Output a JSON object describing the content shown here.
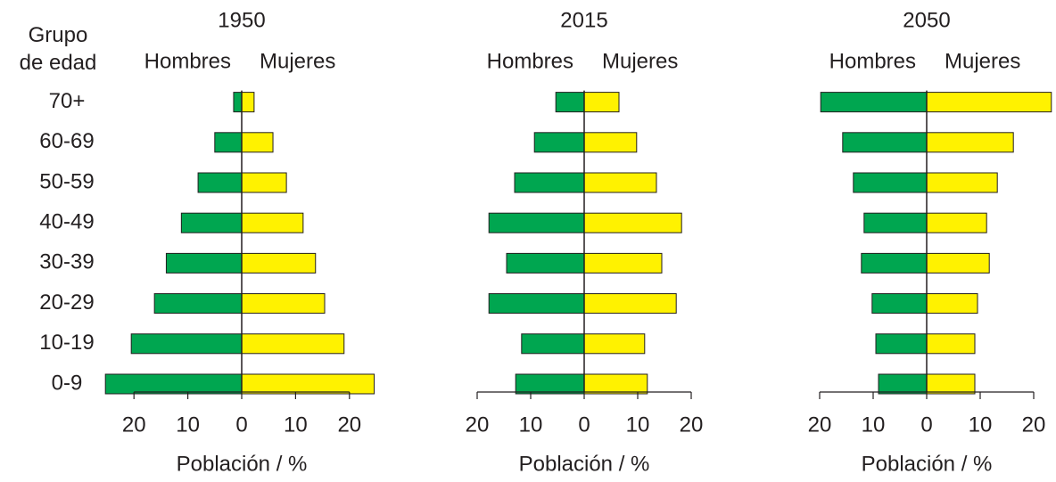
{
  "chart_data": [
    {
      "type": "pyramid",
      "title": "1950",
      "ylabel": "Grupo de edad",
      "xlabel": "Población / %",
      "categories": [
        "0-9",
        "10-19",
        "20-29",
        "30-39",
        "40-49",
        "50-59",
        "60-69",
        "70+"
      ],
      "series": [
        {
          "name": "Hombres",
          "color": "#00a650",
          "values": [
            -25.3,
            -20.5,
            -16.2,
            -14,
            -11.2,
            -8.1,
            -5,
            -1.5
          ]
        },
        {
          "name": "Mujeres",
          "color": "#fff200",
          "values": [
            24.6,
            19,
            15.4,
            13.7,
            11.4,
            8.3,
            5.8,
            2.3
          ]
        }
      ],
      "xlim": [
        -25,
        25
      ],
      "xticks": [
        {
          "value": -20,
          "label": "20"
        },
        {
          "value": -10,
          "label": "10"
        },
        0,
        10,
        20
      ]
    },
    {
      "type": "pyramid",
      "title": "2015",
      "xlabel": "Población / %",
      "series": [
        {
          "name": "Hombres",
          "color": "#00a650",
          "values": [
            -12.8,
            -11.7,
            -17.8,
            -14.5,
            -17.8,
            -13,
            -9.3,
            -5.3
          ]
        },
        {
          "name": "Mujeres",
          "color": "#fff200",
          "values": [
            11.8,
            11.3,
            17.2,
            14.5,
            18.2,
            13.5,
            9.8,
            6.5
          ]
        }
      ],
      "xlim": [
        -20,
        20
      ],
      "xticks": [
        {
          "value": -20,
          "label": "20"
        },
        {
          "value": -10,
          "label": "10"
        },
        0,
        10,
        20
      ]
    },
    {
      "type": "pyramid",
      "title": "2050",
      "xlabel": "Población / %",
      "series": [
        {
          "name": "Hombres",
          "color": "#00a650",
          "values": [
            -9,
            -9.5,
            -10.2,
            -12.2,
            -11.7,
            -13.7,
            -15.7,
            -19.8
          ]
        },
        {
          "name": "Mujeres",
          "color": "#fff200",
          "values": [
            9,
            9,
            9.5,
            11.7,
            11.2,
            13.2,
            16.2,
            23.3
          ]
        }
      ],
      "xlim": [
        -20,
        20
      ],
      "xticks": [
        {
          "value": -20,
          "label": "20"
        },
        {
          "value": -10,
          "label": "10"
        },
        0,
        10,
        20
      ]
    }
  ]
}
